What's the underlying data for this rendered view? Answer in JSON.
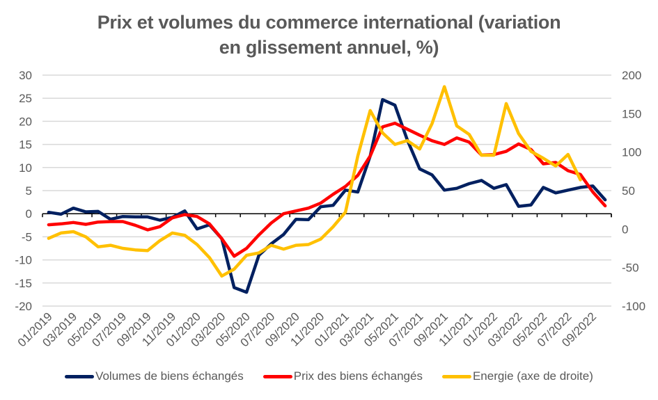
{
  "chart_data": {
    "type": "line",
    "title": "Prix et volumes du commerce international (variation en glissement annuel, %)",
    "title_lines": [
      "Prix et volumes du commerce international (variation",
      "en glissement annuel, %)"
    ],
    "xlabel": "",
    "ylabel": "",
    "y2label": "",
    "ylim": [
      -20,
      30
    ],
    "y2lim": [
      -100,
      200
    ],
    "yticks": [
      30,
      25,
      20,
      15,
      10,
      5,
      0,
      -5,
      -10,
      -15,
      -20
    ],
    "y2ticks": [
      200,
      150,
      100,
      50,
      0,
      -50,
      -100
    ],
    "grid": true,
    "legend_position": "bottom",
    "x": [
      "01/2019",
      "02/2019",
      "03/2019",
      "04/2019",
      "05/2019",
      "06/2019",
      "07/2019",
      "08/2019",
      "09/2019",
      "10/2019",
      "11/2019",
      "12/2019",
      "01/2020",
      "02/2020",
      "03/2020",
      "04/2020",
      "05/2020",
      "06/2020",
      "07/2020",
      "08/2020",
      "09/2020",
      "10/2020",
      "11/2020",
      "12/2020",
      "01/2021",
      "02/2021",
      "03/2021",
      "04/2021",
      "05/2021",
      "06/2021",
      "07/2021",
      "08/2021",
      "09/2021",
      "10/2021",
      "11/2021",
      "12/2021",
      "01/2022",
      "02/2022",
      "03/2022",
      "04/2022",
      "05/2022",
      "06/2022",
      "07/2022",
      "08/2022",
      "09/2022",
      "10/2022"
    ],
    "xticks": [
      "01/2019",
      "03/2019",
      "05/2019",
      "07/2019",
      "09/2019",
      "11/2019",
      "01/2020",
      "03/2020",
      "05/2020",
      "07/2020",
      "09/2020",
      "11/2020",
      "01/2021",
      "03/2021",
      "05/2021",
      "07/2021",
      "09/2021",
      "11/2021",
      "01/2022",
      "03/2022",
      "05/2022",
      "07/2022",
      "09/2022"
    ],
    "series": [
      {
        "name": "Volumes de biens échangés",
        "axis": "left",
        "color": "#002060",
        "values": [
          0.3,
          -0.1,
          1.2,
          0.4,
          0.5,
          -1.2,
          -0.6,
          -0.7,
          -0.7,
          -1.4,
          -0.8,
          0.6,
          -3.3,
          -2.4,
          -5.4,
          -16.0,
          -17.0,
          -9.0,
          -6.5,
          -4.5,
          -1.2,
          -1.3,
          1.5,
          1.8,
          5.1,
          4.7,
          12.5,
          24.7,
          23.5,
          16.0,
          9.7,
          8.4,
          5.1,
          5.5,
          6.5,
          7.2,
          5.5,
          6.3,
          1.6,
          1.9,
          5.7,
          4.5,
          5.1,
          5.7,
          6.0,
          3.0
        ]
      },
      {
        "name": "Prix des biens échangés",
        "axis": "left",
        "color": "#ff0000",
        "values": [
          -2.4,
          -2.2,
          -1.9,
          -2.3,
          -1.8,
          -1.7,
          -1.7,
          -2.5,
          -3.5,
          -2.8,
          -0.9,
          -0.2,
          -0.6,
          -2.2,
          -5.4,
          -9.2,
          -7.5,
          -4.6,
          -2.0,
          0.0,
          0.6,
          1.2,
          2.3,
          4.2,
          5.9,
          8.3,
          12.5,
          18.8,
          19.6,
          18.3,
          17.0,
          15.8,
          15.0,
          16.4,
          15.5,
          12.7,
          12.8,
          13.5,
          15.1,
          13.9,
          10.8,
          11.1,
          9.3,
          8.5,
          4.7,
          1.7
        ]
      },
      {
        "name": "Energie (axe de droite)",
        "axis": "right",
        "color": "#ffc000",
        "values": [
          -12,
          -5,
          -3.3,
          -10,
          -23,
          -21,
          -25,
          -27,
          -28,
          -15,
          -5,
          -8,
          -20,
          -37,
          -61,
          -52,
          -34,
          -31,
          -21,
          -26,
          -21,
          -20,
          -13,
          3,
          22,
          95,
          154,
          125,
          110,
          115,
          104,
          137,
          185,
          134,
          123,
          96,
          96,
          163,
          124,
          101,
          92,
          82,
          97,
          64,
          null,
          null
        ]
      }
    ]
  }
}
